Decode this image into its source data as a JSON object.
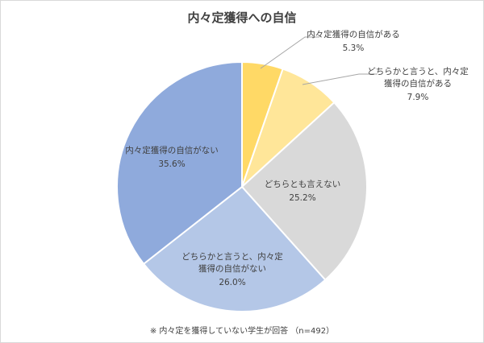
{
  "chart_data": {
    "type": "pie",
    "title": "内々定獲得への自信",
    "slices": [
      {
        "label_lines": [
          "内々定獲得の自信がある"
        ],
        "value": 5.3,
        "value_label": "5.3%",
        "color": "#ffd966"
      },
      {
        "label_lines": [
          "どちらかと言うと、内々定",
          "獲得の自信がある"
        ],
        "value": 7.9,
        "value_label": "7.9%",
        "color": "#ffe699"
      },
      {
        "label_lines": [
          "どちらとも言えない"
        ],
        "value": 25.2,
        "value_label": "25.2%",
        "color": "#d9d9d9"
      },
      {
        "label_lines": [
          "どちらかと言うと、内々定",
          "獲得の自信がない"
        ],
        "value": 26.0,
        "value_label": "26.0%",
        "color": "#b4c7e7"
      },
      {
        "label_lines": [
          "内々定獲得の自信がない"
        ],
        "value": 35.6,
        "value_label": "35.6%",
        "color": "#8faadc"
      }
    ],
    "footnote": "※ 内々定を獲得していない学生が回答 （n=492）"
  }
}
